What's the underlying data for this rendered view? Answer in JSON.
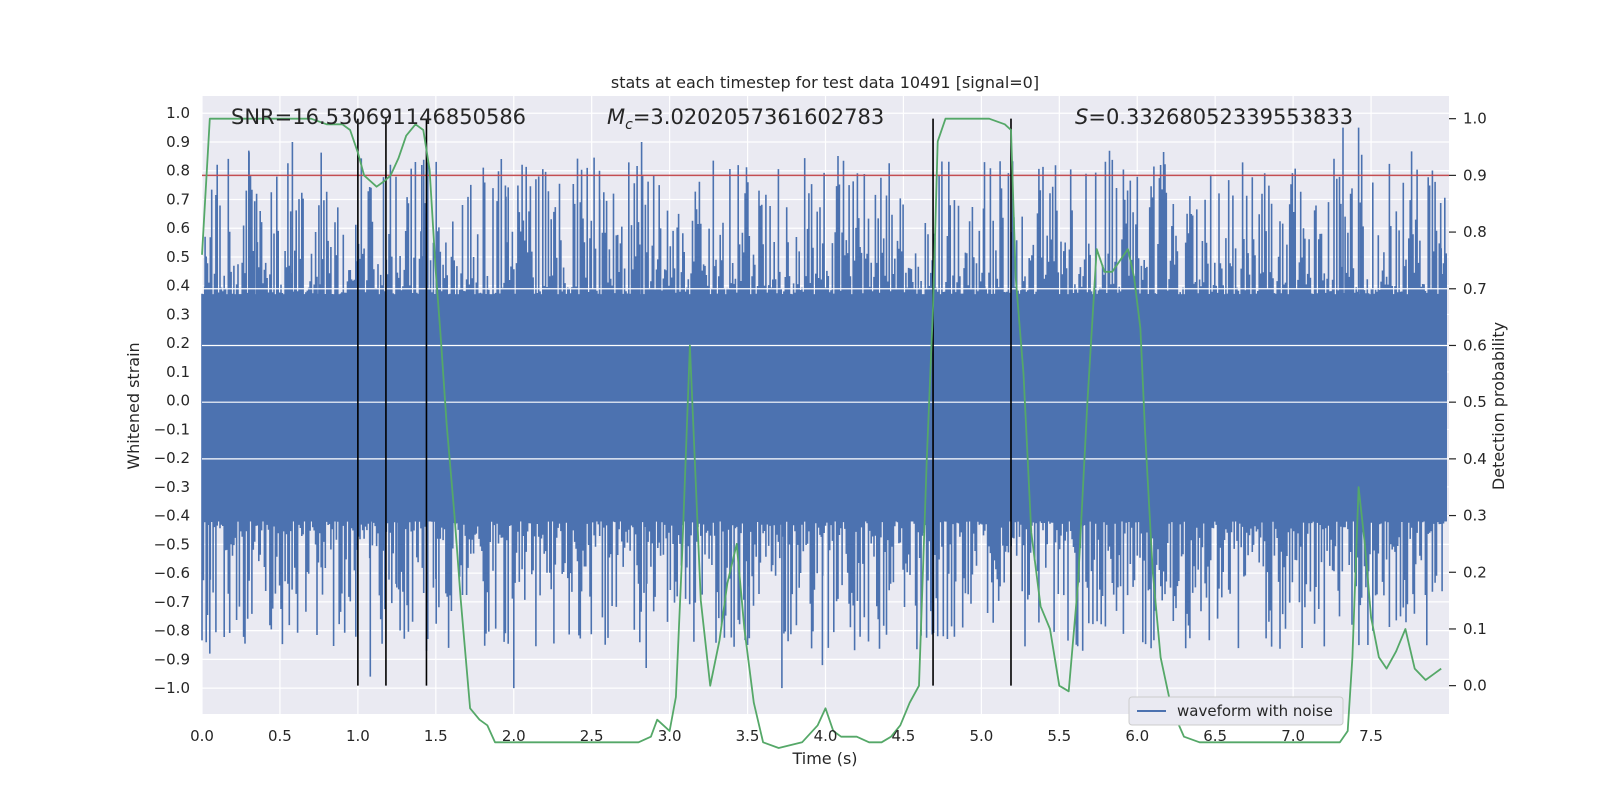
{
  "chart_data": {
    "type": "line",
    "title": "stats at each timestep for test data 10491 [signal=0]",
    "xlabel": "Time (s)",
    "ylabel": "Whitened strain",
    "y2label": "Detection probability",
    "xlim": [
      0.0,
      8.0
    ],
    "ylim": [
      -1.09,
      1.06
    ],
    "y2lim": [
      -0.05,
      1.04
    ],
    "xticks": [
      "0.0",
      "0.5",
      "1.0",
      "1.5",
      "2.0",
      "2.5",
      "3.0",
      "3.5",
      "4.0",
      "4.5",
      "5.0",
      "5.5",
      "6.0",
      "6.5",
      "7.0",
      "7.5"
    ],
    "yticks": [
      "1.0",
      "0.9",
      "0.8",
      "0.7",
      "0.6",
      "0.5",
      "0.4",
      "0.3",
      "0.2",
      "0.1",
      "0.0",
      "-0.1",
      "-0.2",
      "-0.3",
      "-0.4",
      "-0.5",
      "-0.6",
      "-0.7",
      "-0.8",
      "-0.9",
      "-1.0"
    ],
    "y2ticks": [
      "1.0",
      "0.9",
      "0.8",
      "0.7",
      "0.6",
      "0.5",
      "0.4",
      "0.3",
      "0.2",
      "0.1",
      "0.0"
    ],
    "annotations": {
      "snr": "SNR=16.530691146850586",
      "mc_symbol": "M",
      "mc_sub": "c",
      "mc_value": "=3.0202057361602783",
      "s_symbol": "S",
      "s_value": "=0.33268052339553833"
    },
    "threshold": 0.9,
    "vertical_lines": [
      1.0,
      1.18,
      1.44,
      4.69,
      5.19
    ],
    "legend": "waveform with noise",
    "series": [
      {
        "name": "waveform with noise",
        "color": "#4c72b0",
        "noise_envelope": [
          -0.42,
          0.37
        ],
        "peaks": [
          [
            0.02,
            0.57
          ],
          [
            0.05,
            -0.88
          ],
          [
            0.3,
            0.87
          ],
          [
            0.35,
            0.72
          ],
          [
            0.58,
            0.9
          ],
          [
            0.75,
            0.68
          ],
          [
            1.08,
            -0.96
          ],
          [
            1.2,
            0.58
          ],
          [
            1.25,
            -0.65
          ],
          [
            1.41,
            0.82
          ],
          [
            1.5,
            -0.62
          ],
          [
            1.95,
            0.71
          ],
          [
            2.0,
            -1.0
          ],
          [
            2.55,
            0.8
          ],
          [
            2.85,
            -0.93
          ],
          [
            2.82,
            0.9
          ],
          [
            3.5,
            -0.85
          ],
          [
            3.72,
            -1.0
          ],
          [
            3.98,
            -0.92
          ],
          [
            4.8,
            0.68
          ],
          [
            5.02,
            0.83
          ],
          [
            5.65,
            -0.87
          ],
          [
            6.15,
            0.82
          ],
          [
            6.8,
            0.72
          ],
          [
            7.2,
            -0.77
          ],
          [
            7.32,
            0.95
          ],
          [
            7.42,
            0.95
          ],
          [
            7.48,
            -0.85
          ],
          [
            7.95,
            0.53
          ]
        ]
      },
      {
        "name": "detection probability",
        "color": "#55a868",
        "t": [
          0.0,
          0.05,
          0.1,
          0.2,
          0.3,
          0.5,
          0.7,
          0.8,
          0.9,
          0.95,
          1.0,
          1.04,
          1.08,
          1.12,
          1.17,
          1.21,
          1.26,
          1.31,
          1.37,
          1.42,
          1.46,
          1.5,
          1.53,
          1.57,
          1.62,
          1.66,
          1.72,
          1.78,
          1.83,
          1.88,
          2.0,
          2.2,
          2.4,
          2.6,
          2.8,
          2.88,
          2.92,
          2.96,
          3.0,
          3.04,
          3.08,
          3.13,
          3.2,
          3.26,
          3.32,
          3.37,
          3.43,
          3.48,
          3.54,
          3.6,
          3.7,
          3.85,
          3.95,
          4.0,
          4.05,
          4.1,
          4.15,
          4.2,
          4.28,
          4.36,
          4.42,
          4.48,
          4.54,
          4.6,
          4.65,
          4.69,
          4.72,
          4.77,
          4.82,
          4.88,
          4.95,
          5.05,
          5.15,
          5.19,
          5.22,
          5.27,
          5.32,
          5.38,
          5.44,
          5.5,
          5.56,
          5.62,
          5.68,
          5.74,
          5.79,
          5.84,
          5.89,
          5.94,
          5.98,
          6.02,
          6.05,
          6.1,
          6.15,
          6.22,
          6.3,
          6.4,
          6.55,
          6.7,
          6.85,
          7.0,
          7.1,
          7.2,
          7.3,
          7.35,
          7.38,
          7.42,
          7.46,
          7.5,
          7.55,
          7.6,
          7.66,
          7.72,
          7.78,
          7.85,
          7.9,
          7.95
        ],
        "p": [
          0.76,
          1.0,
          1.0,
          1.0,
          1.0,
          1.0,
          1.0,
          0.99,
          0.99,
          0.98,
          0.94,
          0.9,
          0.89,
          0.88,
          0.89,
          0.9,
          0.93,
          0.97,
          0.99,
          0.98,
          0.91,
          0.73,
          0.62,
          0.46,
          0.3,
          0.15,
          -0.04,
          -0.06,
          -0.07,
          -0.1,
          -0.1,
          -0.1,
          -0.1,
          -0.1,
          -0.1,
          -0.09,
          -0.06,
          -0.07,
          -0.08,
          -0.02,
          0.23,
          0.6,
          0.15,
          0.0,
          0.08,
          0.18,
          0.25,
          0.1,
          -0.03,
          -0.1,
          -0.11,
          -0.1,
          -0.07,
          -0.04,
          -0.08,
          -0.09,
          -0.09,
          -0.09,
          -0.1,
          -0.1,
          -0.09,
          -0.07,
          -0.03,
          0.0,
          0.4,
          0.67,
          0.96,
          1.0,
          1.0,
          1.0,
          1.0,
          1.0,
          0.99,
          0.98,
          0.72,
          0.55,
          0.27,
          0.14,
          0.1,
          0.0,
          -0.01,
          0.18,
          0.5,
          0.77,
          0.73,
          0.73,
          0.75,
          0.77,
          0.72,
          0.63,
          0.45,
          0.2,
          0.05,
          -0.04,
          -0.09,
          -0.1,
          -0.1,
          -0.1,
          -0.1,
          -0.1,
          -0.1,
          -0.1,
          -0.1,
          -0.08,
          0.05,
          0.35,
          0.25,
          0.12,
          0.05,
          0.03,
          0.06,
          0.1,
          0.03,
          0.01,
          0.02,
          0.03
        ]
      },
      {
        "name": "threshold",
        "color": "#c44e52"
      }
    ]
  }
}
